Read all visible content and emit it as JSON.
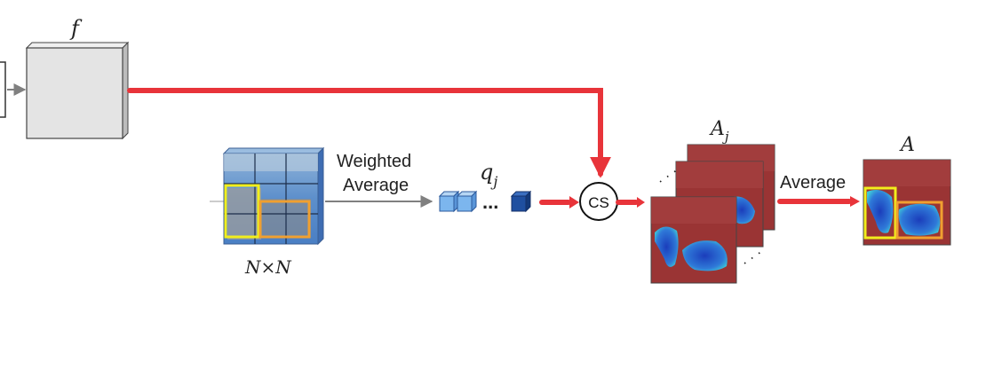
{
  "diagram": {
    "feature_label": "f",
    "grid_label": "N×N",
    "weighted_average_line1": "Weighted",
    "weighted_average_line2": "Average",
    "query_label": "q",
    "query_subscript": "j",
    "dots": "...",
    "cs_label": "CS",
    "attention_maps_label": "A",
    "attention_maps_subscript": "j",
    "average_label": "Average",
    "final_map_label": "A",
    "colors": {
      "red_connector": "#e8343a",
      "gray_arrow": "#808080",
      "feature_box": "#e4e4e4",
      "yellow_box": "#f2ee1c",
      "orange_box": "#f0a030",
      "grid_blue": "#4a7fc4",
      "map_red": "#9a3434",
      "map_blue": "#1b3dbb",
      "query_light": "#7cb6ee",
      "query_dark": "#1f4fa0"
    }
  }
}
